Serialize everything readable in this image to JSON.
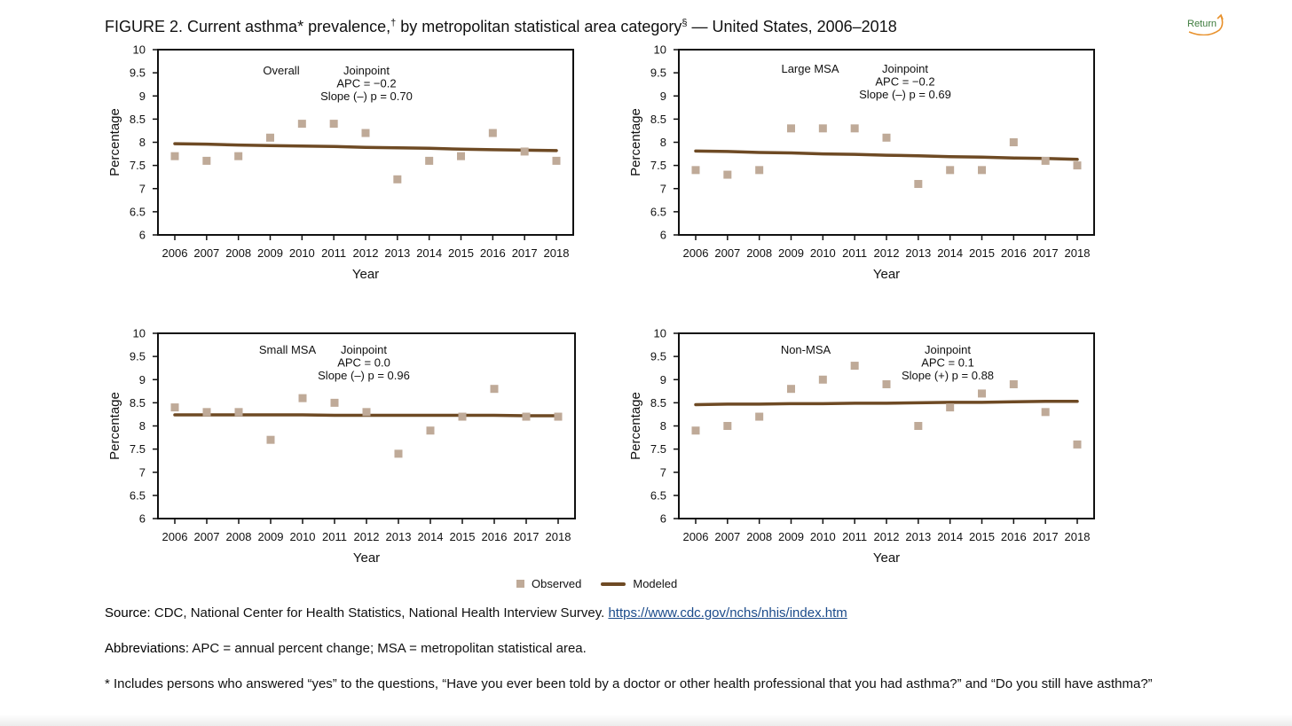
{
  "page": {
    "title_prefix": "FIGURE 2. Current asthma* prevalence,",
    "title_dagger": "†",
    "title_middle": " by metropolitan statistical area category",
    "title_section": "§",
    "title_suffix": " — United States, 2006–2018",
    "return_label": "Return"
  },
  "legend": {
    "observed": "Observed",
    "modeled": "Modeled"
  },
  "notes": {
    "source_label": "Source:",
    "source_text": " CDC, National Center for Health Statistics, National Health Interview Survey. ",
    "source_link": "https://www.cdc.gov/nchs/nhis/index.htm",
    "abbrev_label": "Abbreviations:",
    "abbrev_text": " APC = annual percent change; MSA = metropolitan statistical area.",
    "footnote": "* Includes persons who answered “yes” to the questions, “Have you ever been told by a doctor or other health professional that you had asthma?” and “Do you still have asthma?”"
  },
  "colors": {
    "observed": "#bfaa98",
    "modeled": "#6e4a24"
  },
  "chart_data": [
    {
      "type": "scatter",
      "panel_label": "Overall",
      "annotation": [
        "Joinpoint",
        "APC = −0.2",
        "Slope (–) p = 0.70"
      ],
      "xlabel": "Year",
      "ylabel": "Percentage",
      "x": [
        2006,
        2007,
        2008,
        2009,
        2010,
        2011,
        2012,
        2013,
        2014,
        2015,
        2016,
        2017,
        2018
      ],
      "ylim": [
        6,
        10
      ],
      "yticks": [
        "6",
        "6.5",
        "7",
        "7.5",
        "8",
        "8.5",
        "9",
        "9.5",
        "10"
      ],
      "series": [
        {
          "name": "Observed",
          "values": [
            7.7,
            7.6,
            7.7,
            8.1,
            8.4,
            8.4,
            8.2,
            7.2,
            7.6,
            7.7,
            8.2,
            7.8,
            7.6
          ]
        },
        {
          "name": "Modeled",
          "values": [
            7.97,
            7.96,
            7.94,
            7.93,
            7.92,
            7.91,
            7.89,
            7.88,
            7.87,
            7.85,
            7.84,
            7.83,
            7.82
          ]
        }
      ]
    },
    {
      "type": "scatter",
      "panel_label": "Large MSA",
      "annotation": [
        "Joinpoint",
        "APC = −0.2",
        "Slope (–) p = 0.69"
      ],
      "xlabel": "Year",
      "ylabel": "Percentage",
      "x": [
        2006,
        2007,
        2008,
        2009,
        2010,
        2011,
        2012,
        2013,
        2014,
        2015,
        2016,
        2017,
        2018
      ],
      "ylim": [
        6,
        10
      ],
      "yticks": [
        "6",
        "6.5",
        "7",
        "7.5",
        "8",
        "8.5",
        "9",
        "9.5",
        "10"
      ],
      "series": [
        {
          "name": "Observed",
          "values": [
            7.4,
            7.3,
            7.4,
            8.3,
            8.3,
            8.3,
            8.1,
            7.1,
            7.4,
            7.4,
            8.0,
            7.6,
            7.5
          ]
        },
        {
          "name": "Modeled",
          "values": [
            7.81,
            7.8,
            7.78,
            7.77,
            7.75,
            7.74,
            7.72,
            7.71,
            7.69,
            7.68,
            7.66,
            7.65,
            7.63
          ]
        }
      ]
    },
    {
      "type": "scatter",
      "panel_label": "Small MSA",
      "annotation": [
        "Joinpoint",
        "APC = 0.0",
        "Slope (–) p = 0.96"
      ],
      "xlabel": "Year",
      "ylabel": "Percentage",
      "x": [
        2006,
        2007,
        2008,
        2009,
        2010,
        2011,
        2012,
        2013,
        2014,
        2015,
        2016,
        2017,
        2018
      ],
      "ylim": [
        6,
        10
      ],
      "yticks": [
        "6",
        "6.5",
        "7",
        "7.5",
        "8",
        "8.5",
        "9",
        "9.5",
        "10"
      ],
      "series": [
        {
          "name": "Observed",
          "values": [
            8.4,
            8.3,
            8.3,
            7.7,
            8.6,
            8.5,
            8.3,
            7.4,
            7.9,
            8.2,
            8.8,
            8.2,
            8.2
          ]
        },
        {
          "name": "Modeled",
          "values": [
            8.24,
            8.24,
            8.24,
            8.24,
            8.24,
            8.23,
            8.23,
            8.23,
            8.23,
            8.23,
            8.23,
            8.22,
            8.22
          ]
        }
      ]
    },
    {
      "type": "scatter",
      "panel_label": "Non-MSA",
      "annotation": [
        "Joinpoint",
        "APC = 0.1",
        "Slope (+) p = 0.88"
      ],
      "xlabel": "Year",
      "ylabel": "Percentage",
      "x": [
        2006,
        2007,
        2008,
        2009,
        2010,
        2011,
        2012,
        2013,
        2014,
        2015,
        2016,
        2017,
        2018
      ],
      "ylim": [
        6,
        10
      ],
      "yticks": [
        "6",
        "6.5",
        "7",
        "7.5",
        "8",
        "8.5",
        "9",
        "9.5",
        "10"
      ],
      "series": [
        {
          "name": "Observed",
          "values": [
            7.9,
            8.0,
            8.2,
            8.8,
            9.0,
            9.3,
            8.9,
            8.0,
            8.4,
            8.7,
            8.9,
            8.3,
            7.6
          ]
        },
        {
          "name": "Modeled",
          "values": [
            8.46,
            8.47,
            8.47,
            8.48,
            8.48,
            8.49,
            8.49,
            8.5,
            8.51,
            8.51,
            8.52,
            8.53,
            8.53
          ]
        }
      ]
    }
  ]
}
